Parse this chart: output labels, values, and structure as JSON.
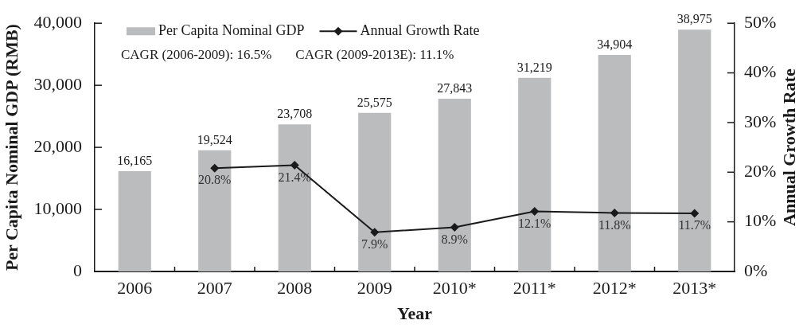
{
  "chart_data": {
    "type": "bar",
    "xlabel": "Year",
    "ylabel": "Per Capita Nominal GDP (RMB)",
    "y2label": "Annual Growth Rate",
    "annotations": [
      "CAGR (2006-2009): 16.5%",
      "CAGR (2009-2013E): 11.1%"
    ],
    "categories": [
      "2006",
      "2007",
      "2008",
      "2009",
      "2010*",
      "2011*",
      "2012*",
      "2013*"
    ],
    "series": [
      {
        "name": "Per Capita Nominal GDP",
        "color": "#bbbcbe",
        "values": [
          16165,
          19524,
          23708,
          25575,
          27843,
          31219,
          34904,
          38975
        ],
        "value_labels": [
          "16,165",
          "19,524",
          "23,708",
          "25,575",
          "27,843",
          "31,219",
          "34,904",
          "38,975"
        ]
      },
      {
        "name": "Annual Growth Rate",
        "type": "line",
        "axis": "y2",
        "color": "#1a1a1a",
        "values": [
          null,
          20.8,
          21.4,
          7.9,
          8.9,
          12.1,
          11.8,
          11.7
        ],
        "value_labels": [
          null,
          "20.8%",
          "21.4%",
          "7.9%",
          "8.9%",
          "12.1%",
          "11.8%",
          "11.7%"
        ]
      }
    ],
    "ylim": [
      0,
      40000
    ],
    "yticks": [
      0,
      {
        "value": 10000,
        "label": "10,000"
      },
      {
        "value": 20000,
        "label": "20,000"
      },
      {
        "value": 30000,
        "label": "30,000"
      },
      {
        "value": 40000,
        "label": "40,000"
      }
    ],
    "y2lim": [
      0,
      50
    ],
    "y2ticks": [
      {
        "value": 0,
        "label": "0%"
      },
      {
        "value": 10,
        "label": "10%"
      },
      {
        "value": 20,
        "label": "20%"
      },
      {
        "value": 30,
        "label": "30%"
      },
      {
        "value": 40,
        "label": "40%"
      },
      {
        "value": 50,
        "label": "50%"
      }
    ],
    "marker": "diamond",
    "grid": false,
    "legend": "top left"
  }
}
